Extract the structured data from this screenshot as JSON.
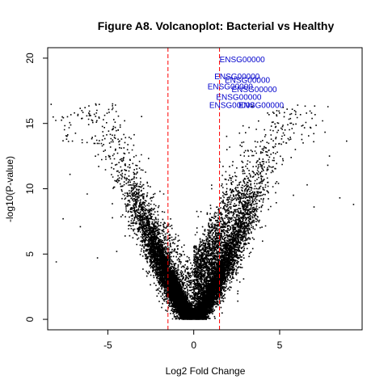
{
  "chart_data": {
    "type": "scatter",
    "title": "Figure A8. Volcanoplot: Bacterial vs Healthy",
    "xlabel": "Log2 Fold Change",
    "ylabel": "-log10(P-value)",
    "xlim": [
      -8.5,
      9.8
    ],
    "ylim": [
      -0.8,
      20.8
    ],
    "x_ticks": [
      -5,
      0,
      5
    ],
    "x_tick_labels": [
      "-5",
      "0",
      "5"
    ],
    "y_ticks": [
      0,
      5,
      10,
      15,
      20
    ],
    "y_tick_labels": [
      "0",
      "5",
      "10",
      "15",
      "20"
    ],
    "grid": false,
    "legend": "none",
    "colors": {
      "points": "#000000",
      "threshold_lines": "#ff0000",
      "labels": "#0000cc"
    },
    "threshold_lines_x": [
      -1.5,
      1.5
    ],
    "approx_point_count": 15000,
    "outliers": [
      {
        "x": 9.3,
        "y": 8.8
      },
      {
        "x": 8.5,
        "y": 9.3
      },
      {
        "x": 7.5,
        "y": 15.2
      },
      {
        "x": 7.9,
        "y": 12.5
      },
      {
        "x": 7.8,
        "y": 11.8
      },
      {
        "x": 6.6,
        "y": 10.3
      },
      {
        "x": 7.0,
        "y": 8.6
      },
      {
        "x": 5.8,
        "y": 9.5
      },
      {
        "x": 4.3,
        "y": 15.8
      },
      {
        "x": 3.4,
        "y": 16.3
      },
      {
        "x": -7.2,
        "y": 11.1
      },
      {
        "x": -8.0,
        "y": 4.4
      },
      {
        "x": -6.2,
        "y": 9.6
      },
      {
        "x": -6.6,
        "y": 7.1
      },
      {
        "x": -7.6,
        "y": 7.7
      },
      {
        "x": -5.6,
        "y": 4.7
      },
      {
        "x": -4.2,
        "y": 13.8
      }
    ],
    "annotations": [
      {
        "text": "ENSG00000",
        "x": 1.5,
        "y": 19.7
      },
      {
        "text": "ENSG00000",
        "x": 1.2,
        "y": 18.4
      },
      {
        "text": "ENSG00000",
        "x": 1.8,
        "y": 18.1
      },
      {
        "text": "ENSG00000",
        "x": 0.8,
        "y": 17.6
      },
      {
        "text": "ENSG00000",
        "x": 2.2,
        "y": 17.4
      },
      {
        "text": "ENSG00000",
        "x": 1.3,
        "y": 16.8
      },
      {
        "text": "ENSG00000",
        "x": 0.9,
        "y": 16.2
      },
      {
        "text": "ENSG00000",
        "x": 2.6,
        "y": 16.2
      }
    ]
  }
}
